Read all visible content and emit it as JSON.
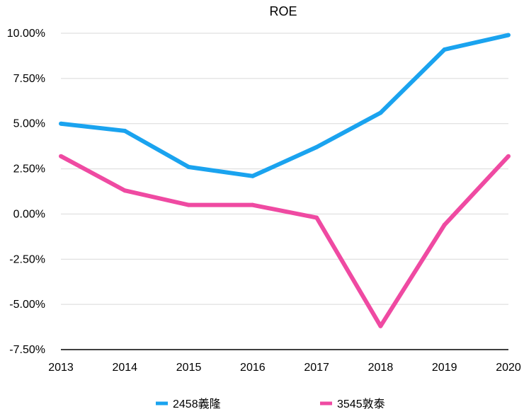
{
  "chart_data": {
    "type": "line",
    "title": "ROE",
    "xlabel": "",
    "ylabel": "",
    "categories": [
      "2013",
      "2014",
      "2015",
      "2016",
      "2017",
      "2018",
      "2019",
      "2020"
    ],
    "y_ticks": [
      "10.00%",
      "7.50%",
      "5.00%",
      "2.50%",
      "0.00%",
      "-2.50%",
      "-5.00%",
      "-7.50%"
    ],
    "ylim": [
      -7.5,
      10.0
    ],
    "grid": true,
    "legend_position": "bottom",
    "series": [
      {
        "name": "2458義隆",
        "color": "#1aa3ef",
        "values": [
          5.0,
          4.6,
          2.6,
          2.1,
          3.7,
          5.6,
          9.1,
          9.9
        ]
      },
      {
        "name": "3545敦泰",
        "color": "#ef4aa2",
        "values": [
          3.2,
          1.3,
          0.5,
          0.5,
          -0.2,
          -6.2,
          -0.6,
          3.2
        ]
      }
    ]
  }
}
